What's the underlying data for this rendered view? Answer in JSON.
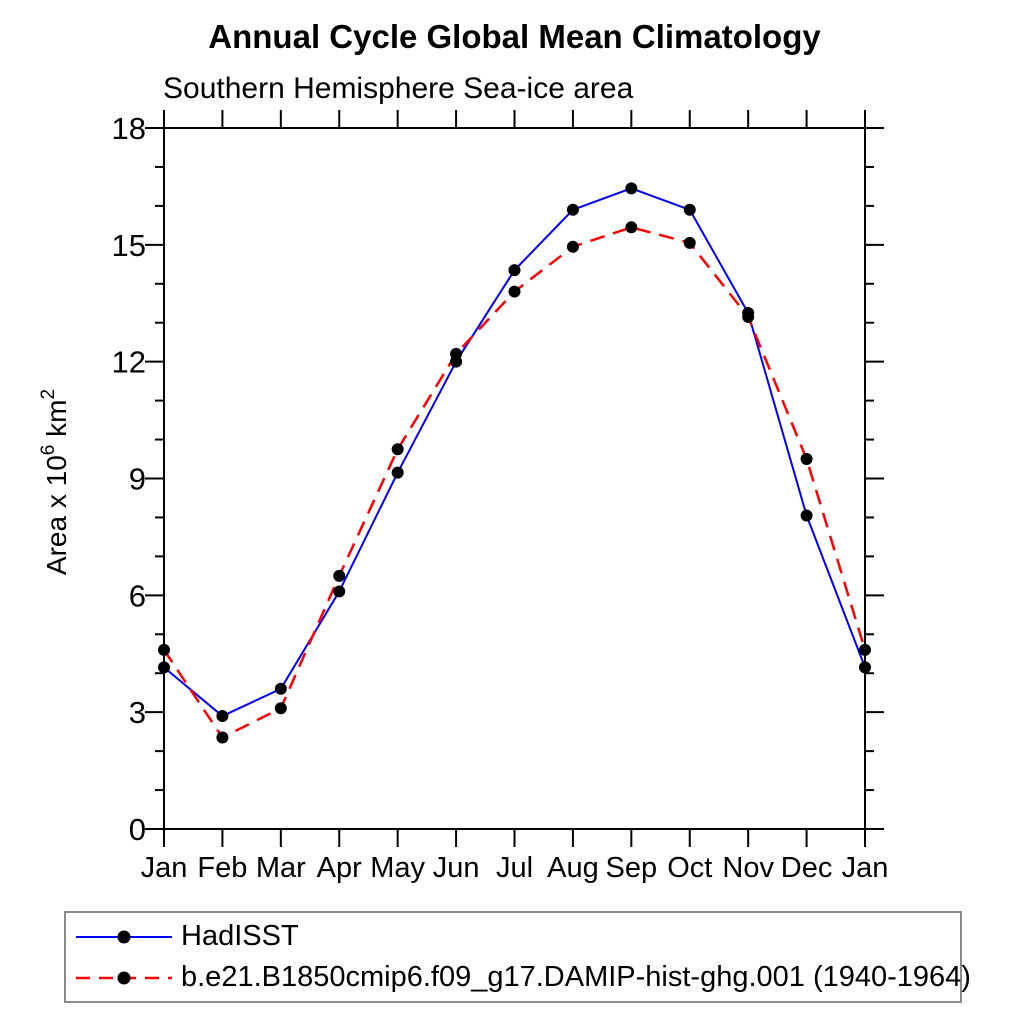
{
  "window": {
    "background": "#ffffff"
  },
  "chart_data": {
    "type": "line",
    "title": "Annual Cycle Global Mean Climatology",
    "subtitle": "Southern Hemisphere Sea-ice area",
    "categories": [
      "Jan",
      "Feb",
      "Mar",
      "Apr",
      "May",
      "Jun",
      "Jul",
      "Aug",
      "Sep",
      "Oct",
      "Nov",
      "Dec",
      "Jan"
    ],
    "series": [
      {
        "name": "HadISST",
        "color": "#0000ff",
        "line_style": "solid",
        "line_width": 2,
        "marker": "filled-circle",
        "marker_color": "#000000",
        "values": [
          4.15,
          2.9,
          3.6,
          6.1,
          9.15,
          12.0,
          14.35,
          15.9,
          16.45,
          15.9,
          13.25,
          8.05,
          4.15
        ]
      },
      {
        "name": "b.e21.B1850cmip6.f09_g17.DAMIP-hist-ghg.001 (1940-1964)",
        "color": "#ff0000",
        "line_style": "dashed",
        "line_width": 2.5,
        "dash_array": "15 9",
        "marker": "filled-circle",
        "marker_color": "#000000",
        "values": [
          4.6,
          2.35,
          3.1,
          6.5,
          9.75,
          12.2,
          13.8,
          14.95,
          15.45,
          15.05,
          13.15,
          9.5,
          4.6
        ]
      }
    ],
    "xlabel": "",
    "ylabel": "Area x 10^6 km^2",
    "ylabel_parts": [
      {
        "t": "Area x 10",
        "sup": false
      },
      {
        "t": "6",
        "sup": true
      },
      {
        "t": " km",
        "sup": false
      },
      {
        "t": "2",
        "sup": true
      }
    ],
    "ylim": [
      0,
      18
    ],
    "ytick_major": [
      0,
      3,
      6,
      9,
      12,
      15,
      18
    ],
    "ytick_minor_step": 1,
    "grid": false,
    "axis_color": "#000000",
    "tick_sides": [
      "bottom",
      "top",
      "left",
      "right"
    ],
    "legend_position": "bottom-left-box",
    "marker_radius": 6
  }
}
